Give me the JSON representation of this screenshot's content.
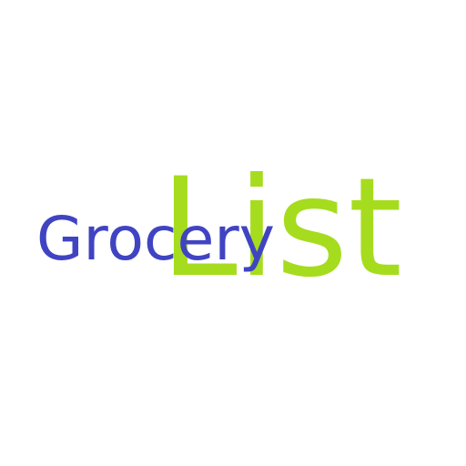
{
  "logo": {
    "grocery": "Grocery",
    "list": "List"
  }
}
